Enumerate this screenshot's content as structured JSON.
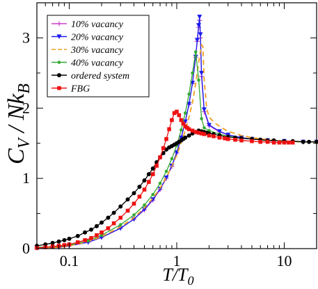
{
  "chart_data": {
    "type": "line",
    "title": "",
    "xlabel": "T/T₀",
    "ylabel": "C_V / Nk_B",
    "x_scale": "log",
    "xlim": [
      0.05,
      20
    ],
    "ylim": [
      0,
      3.5
    ],
    "x_ticks": [
      0.1,
      1,
      10
    ],
    "x_tick_labels": [
      "0.1",
      "1",
      "10"
    ],
    "y_ticks": [
      0,
      1,
      2,
      3
    ],
    "y_tick_labels": [
      "0",
      "1",
      "2",
      "3"
    ],
    "grid": false,
    "legend_position": "top-left",
    "series": [
      {
        "name": "10% vacancy",
        "color": "#cc44cc",
        "marker": "plus",
        "dash": "none",
        "x": [
          0.05,
          0.08,
          0.1,
          0.15,
          0.2,
          0.3,
          0.4,
          0.5,
          0.6,
          0.7,
          0.8,
          0.9,
          1.0,
          1.1,
          1.2,
          1.3,
          1.4,
          1.5,
          1.55,
          1.6,
          1.63,
          1.66,
          1.7,
          1.8,
          2.0,
          2.5,
          3,
          4,
          5,
          7,
          10,
          15,
          20
        ],
        "y": [
          0.01,
          0.02,
          0.04,
          0.09,
          0.16,
          0.29,
          0.42,
          0.55,
          0.69,
          0.84,
          1.0,
          1.17,
          1.36,
          1.57,
          1.8,
          2.05,
          2.35,
          2.72,
          2.95,
          3.15,
          3.25,
          3.0,
          2.45,
          1.95,
          1.75,
          1.66,
          1.62,
          1.58,
          1.56,
          1.54,
          1.53,
          1.52,
          1.52
        ]
      },
      {
        "name": "20% vacancy",
        "color": "#1a1aee",
        "marker": "triangle-down",
        "dash": "none",
        "x": [
          0.05,
          0.08,
          0.1,
          0.15,
          0.2,
          0.3,
          0.4,
          0.5,
          0.6,
          0.7,
          0.8,
          0.9,
          1.0,
          1.1,
          1.2,
          1.3,
          1.4,
          1.5,
          1.55,
          1.6,
          1.63,
          1.66,
          1.7,
          1.8,
          2.0,
          2.5,
          3,
          4,
          5,
          7,
          10,
          15,
          20
        ],
        "y": [
          0.01,
          0.02,
          0.04,
          0.09,
          0.16,
          0.29,
          0.42,
          0.56,
          0.7,
          0.85,
          1.01,
          1.18,
          1.37,
          1.58,
          1.81,
          2.06,
          2.36,
          2.73,
          2.97,
          3.18,
          3.3,
          3.05,
          2.5,
          1.98,
          1.76,
          1.67,
          1.62,
          1.58,
          1.56,
          1.54,
          1.53,
          1.52,
          1.52
        ]
      },
      {
        "name": "30% vacancy",
        "color": "#f0a020",
        "marker": "none",
        "dash": "dashed",
        "x": [
          0.05,
          0.08,
          0.1,
          0.15,
          0.2,
          0.3,
          0.4,
          0.5,
          0.6,
          0.7,
          0.8,
          0.9,
          1.0,
          1.1,
          1.2,
          1.3,
          1.4,
          1.5,
          1.6,
          1.7,
          1.75,
          1.8,
          1.9,
          2.0,
          2.3,
          2.7,
          3,
          4,
          5,
          7,
          10,
          15,
          20
        ],
        "y": [
          0.01,
          0.02,
          0.04,
          0.1,
          0.17,
          0.31,
          0.44,
          0.58,
          0.72,
          0.86,
          1.02,
          1.17,
          1.33,
          1.5,
          1.68,
          1.87,
          2.08,
          2.35,
          2.65,
          2.9,
          2.88,
          2.4,
          2.0,
          1.87,
          1.78,
          1.71,
          1.67,
          1.61,
          1.58,
          1.55,
          1.53,
          1.52,
          1.52
        ]
      },
      {
        "name": "40% vacancy",
        "color": "#33aa33",
        "marker": "circle-small",
        "dash": "none",
        "x": [
          0.05,
          0.08,
          0.1,
          0.15,
          0.2,
          0.3,
          0.4,
          0.5,
          0.6,
          0.7,
          0.8,
          0.9,
          1.0,
          1.1,
          1.2,
          1.3,
          1.4,
          1.5,
          1.6,
          1.7,
          1.8,
          2.0,
          2.5,
          3,
          4,
          5,
          7,
          10,
          15,
          20
        ],
        "y": [
          0.02,
          0.03,
          0.05,
          0.11,
          0.19,
          0.34,
          0.48,
          0.62,
          0.77,
          0.93,
          1.1,
          1.28,
          1.47,
          1.69,
          1.93,
          2.2,
          2.5,
          2.8,
          2.4,
          1.85,
          1.72,
          1.68,
          1.63,
          1.6,
          1.57,
          1.56,
          1.54,
          1.53,
          1.52,
          1.52
        ]
      },
      {
        "name": "ordered system",
        "color": "#000000",
        "marker": "circle",
        "dash": "none",
        "x": [
          0.05,
          0.06,
          0.07,
          0.08,
          0.09,
          0.1,
          0.12,
          0.14,
          0.16,
          0.18,
          0.2,
          0.23,
          0.26,
          0.3,
          0.35,
          0.4,
          0.45,
          0.5,
          0.55,
          0.6,
          0.65,
          0.7,
          0.75,
          0.8,
          0.85,
          0.9,
          0.95,
          1.0,
          1.05,
          1.1,
          1.15,
          1.2,
          1.3,
          1.4,
          1.5,
          1.6,
          1.7,
          1.8,
          1.9,
          2.0,
          2.2,
          2.5,
          3,
          3.5,
          4,
          5,
          6,
          7,
          8,
          10,
          12,
          15,
          17,
          20
        ],
        "y": [
          0.04,
          0.06,
          0.08,
          0.1,
          0.12,
          0.14,
          0.18,
          0.23,
          0.27,
          0.32,
          0.37,
          0.44,
          0.51,
          0.6,
          0.7,
          0.79,
          0.88,
          0.97,
          1.06,
          1.14,
          1.23,
          1.3,
          1.36,
          1.41,
          1.44,
          1.46,
          1.48,
          1.5,
          1.52,
          1.54,
          1.56,
          1.58,
          1.61,
          1.64,
          1.66,
          1.68,
          1.67,
          1.66,
          1.65,
          1.64,
          1.63,
          1.61,
          1.59,
          1.58,
          1.57,
          1.56,
          1.55,
          1.54,
          1.54,
          1.53,
          1.53,
          1.52,
          1.52,
          1.52
        ]
      },
      {
        "name": "FBG",
        "color": "#ee1111",
        "marker": "square",
        "dash": "none",
        "x": [
          0.05,
          0.06,
          0.07,
          0.08,
          0.09,
          0.1,
          0.12,
          0.14,
          0.16,
          0.18,
          0.2,
          0.23,
          0.26,
          0.3,
          0.35,
          0.4,
          0.45,
          0.5,
          0.55,
          0.6,
          0.65,
          0.7,
          0.75,
          0.8,
          0.85,
          0.9,
          0.95,
          1.0,
          1.05,
          1.1,
          1.15,
          1.2,
          1.25,
          1.3,
          1.4,
          1.5,
          1.6,
          1.7,
          1.8,
          2.0,
          2.2,
          2.5,
          2.8,
          3,
          3.5,
          4,
          5,
          6,
          7,
          8,
          9,
          10,
          11,
          12
        ],
        "y": [
          0.01,
          0.02,
          0.03,
          0.04,
          0.05,
          0.06,
          0.09,
          0.12,
          0.15,
          0.19,
          0.23,
          0.29,
          0.36,
          0.44,
          0.54,
          0.64,
          0.74,
          0.84,
          0.95,
          1.06,
          1.18,
          1.3,
          1.43,
          1.56,
          1.7,
          1.83,
          1.93,
          1.95,
          1.9,
          1.83,
          1.78,
          1.74,
          1.72,
          1.7,
          1.68,
          1.66,
          1.65,
          1.64,
          1.63,
          1.61,
          1.6,
          1.58,
          1.57,
          1.56,
          1.55,
          1.54,
          1.53,
          1.52,
          1.52,
          1.51,
          1.51,
          1.51,
          1.51,
          1.51
        ]
      }
    ]
  }
}
